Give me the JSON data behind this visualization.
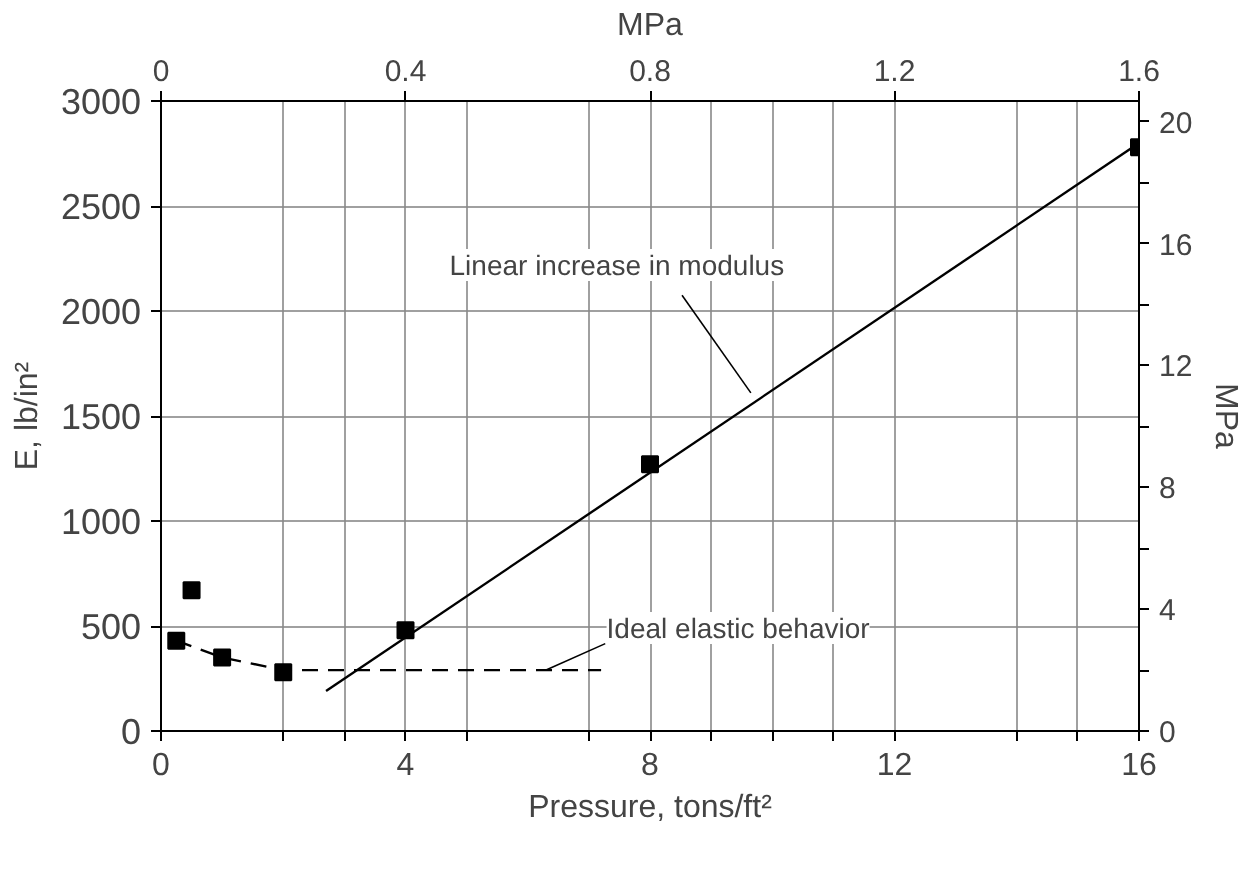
{
  "chart_data": {
    "type": "scatter",
    "xlabel": "Pressure, tons/ft²",
    "ylabel": "E, lb/in²",
    "y2label": "MPa",
    "x2label": "MPa",
    "xlim": [
      0,
      16
    ],
    "ylim": [
      0,
      3000
    ],
    "y2lim": [
      0,
      20.68
    ],
    "x2lim": [
      0,
      1.6
    ],
    "xticks": [
      0,
      {
        "value": 2,
        "label": null
      },
      {
        "value": 3,
        "label": null
      },
      4,
      {
        "value": 5,
        "label": null
      },
      {
        "value": 7,
        "label": null
      },
      8,
      {
        "value": 9,
        "label": null
      },
      {
        "value": 10,
        "label": null
      },
      {
        "value": 11,
        "label": null
      },
      12,
      {
        "value": 14,
        "label": null
      },
      {
        "value": 15,
        "label": null
      },
      16
    ],
    "yticks": [
      0,
      500,
      1000,
      1500,
      2000,
      2500,
      3000
    ],
    "y2ticks": [
      0,
      {
        "value": 2,
        "label": null
      },
      4,
      {
        "value": 6,
        "label": null
      },
      8,
      {
        "value": 10,
        "label": null
      },
      12,
      {
        "value": 14,
        "label": null
      },
      16,
      {
        "value": 18,
        "label": null
      },
      20
    ],
    "x2ticks": [
      0,
      0.4,
      0.8,
      1.2,
      1.6
    ],
    "grid": true,
    "series": [
      {
        "color": "#000000",
        "marker": "square",
        "x": [
          0.25,
          0.5,
          1,
          2,
          4,
          8,
          16
        ],
        "values": [
          430,
          670,
          350,
          280,
          480,
          1270,
          2780
        ]
      },
      {
        "type": "line",
        "color": "#000000",
        "line_style": "dashed",
        "x": [
          0.25,
          1,
          2,
          7.2
        ],
        "values": [
          430,
          350,
          290,
          290
        ]
      },
      {
        "type": "line",
        "color": "#000000",
        "line_style": "solid",
        "x": [
          2.7,
          16
        ],
        "values": [
          190,
          2800
        ]
      }
    ],
    "annotations": [
      {
        "text": "Linear increase in modulus",
        "x": 9.65,
        "y": 1610
      },
      {
        "text": "Ideal elastic behavior",
        "x": 6.3,
        "y": 290
      }
    ]
  }
}
